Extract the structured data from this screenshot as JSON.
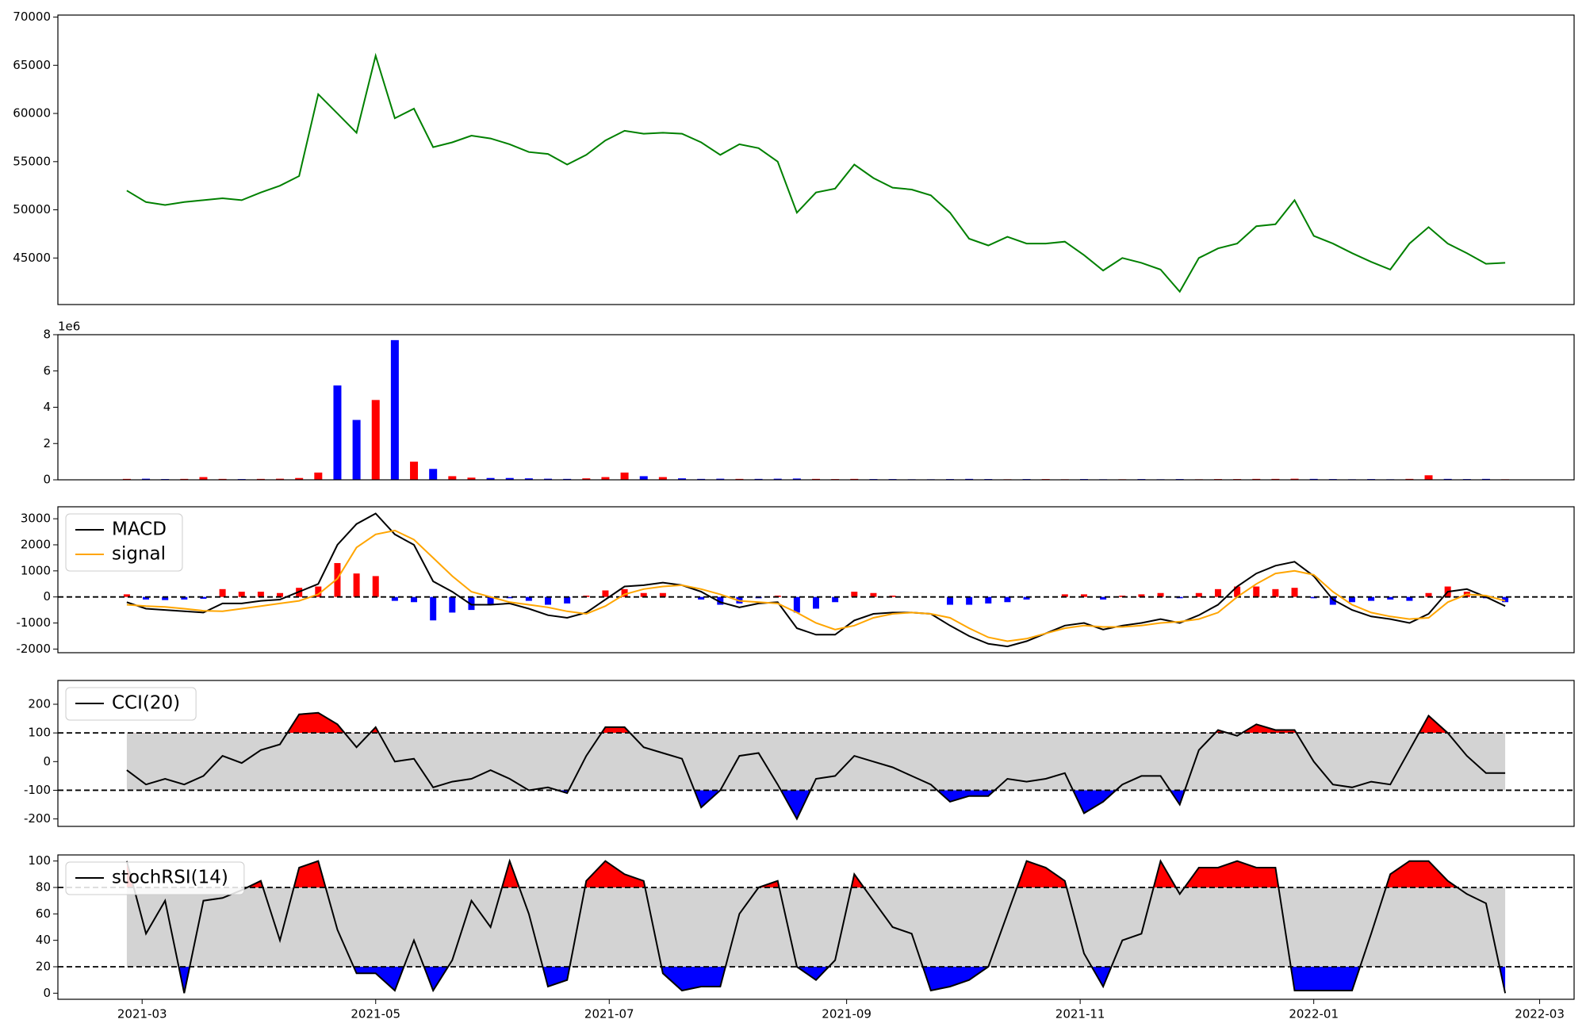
{
  "chart_data": {
    "type": "panels",
    "x": [
      -4,
      1,
      6,
      11,
      16,
      21,
      26,
      31,
      36,
      41,
      46,
      51,
      56,
      61,
      66,
      71,
      76,
      81,
      86,
      91,
      96,
      101,
      106,
      111,
      116,
      121,
      126,
      131,
      136,
      141,
      146,
      151,
      156,
      161,
      166,
      171,
      176,
      181,
      186,
      191,
      196,
      201,
      206,
      211,
      216,
      221,
      226,
      231,
      236,
      241,
      246,
      251,
      256,
      261,
      266,
      271,
      276,
      281,
      286,
      291,
      296,
      301,
      306,
      311,
      316,
      321,
      326,
      331,
      336,
      341,
      346,
      351,
      356
    ],
    "xlim": [
      -22,
      374
    ],
    "xticks": [
      {
        "value": 0,
        "label": "2021-03"
      },
      {
        "value": 61,
        "label": "2021-05"
      },
      {
        "value": 122,
        "label": "2021-07"
      },
      {
        "value": 184,
        "label": "2021-09"
      },
      {
        "value": 245,
        "label": "2021-11"
      },
      {
        "value": 306,
        "label": "2022-01"
      },
      {
        "value": 365,
        "label": "2022-03"
      }
    ],
    "panels": [
      {
        "type": "line",
        "series": [
          {
            "color": "green",
            "values": [
              52000,
              50800,
              50500,
              50800,
              51000,
              51200,
              51000,
              51800,
              52500,
              53500,
              62000,
              60000,
              58000,
              66000,
              59500,
              60500,
              56500,
              57000,
              57700,
              57400,
              56800,
              56000,
              55800,
              54700,
              55700,
              57200,
              58200,
              57900,
              58000,
              57900,
              57000,
              55700,
              56800,
              56400,
              55000,
              49700,
              51800,
              52200,
              54700,
              53300,
              52300,
              52100,
              51500,
              49700,
              47000,
              46300,
              47200,
              46500,
              46500,
              46700,
              45300,
              43700,
              45000,
              44500,
              43800,
              41500,
              45000,
              46000,
              46500,
              48300,
              48500,
              51000,
              47300,
              46500,
              45500,
              44600,
              43800,
              46500,
              48200,
              46500,
              45500,
              44400,
              44500
            ]
          }
        ],
        "ylim": [
          40170,
          70210
        ],
        "yticks": [
          45000,
          50000,
          55000,
          60000,
          65000,
          70000
        ]
      },
      {
        "type": "bar",
        "offset_label": "1e6",
        "up_color": "red",
        "down_color": "blue",
        "values": [
          0.05,
          0.06,
          0.04,
          0.05,
          0.15,
          0.05,
          0.04,
          0.05,
          0.06,
          0.1,
          0.4,
          5.2,
          3.3,
          4.4,
          7.7,
          1.0,
          0.6,
          0.2,
          0.12,
          0.1,
          0.1,
          0.08,
          0.06,
          0.05,
          0.08,
          0.15,
          0.4,
          0.2,
          0.15,
          0.08,
          0.05,
          0.06,
          0.05,
          0.05,
          0.06,
          0.07,
          0.05,
          0.04,
          0.05,
          0.04,
          0.04,
          0.03,
          0.03,
          0.04,
          0.05,
          0.04,
          0.03,
          0.04,
          0.04,
          0.03,
          0.04,
          0.03,
          0.03,
          0.04,
          0.03,
          0.04,
          0.03,
          0.04,
          0.04,
          0.05,
          0.05,
          0.06,
          0.05,
          0.04,
          0.03,
          0.04,
          0.03,
          0.05,
          0.25,
          0.05,
          0.04,
          0.05,
          0.03
        ],
        "ylim": [
          0,
          8
        ],
        "yticks": [
          0,
          2,
          4,
          6,
          8
        ]
      },
      {
        "type": "line",
        "legend": "upper left",
        "hlines": [
          0
        ],
        "series": [
          {
            "name": "MACD",
            "color": "black",
            "values": [
              -200,
              -450,
              -500,
              -550,
              -600,
              -250,
              -250,
              -150,
              -100,
              200,
              500,
              2000,
              2800,
              3200,
              2400,
              2000,
              600,
              200,
              -300,
              -300,
              -250,
              -450,
              -700,
              -800,
              -600,
              -100,
              400,
              450,
              550,
              450,
              200,
              -200,
              -400,
              -250,
              -200,
              -1200,
              -1450,
              -1450,
              -900,
              -650,
              -600,
              -600,
              -650,
              -1100,
              -1500,
              -1800,
              -1900,
              -1700,
              -1400,
              -1100,
              -1000,
              -1250,
              -1100,
              -1000,
              -850,
              -1000,
              -700,
              -300,
              400,
              900,
              1200,
              1350,
              800,
              -100,
              -500,
              -750,
              -850,
              -1000,
              -650,
              200,
              300,
              0,
              -350
            ]
          },
          {
            "name": "signal",
            "color": "orange",
            "values": [
              -300,
              -350,
              -380,
              -450,
              -530,
              -550,
              -450,
              -350,
              -250,
              -150,
              100,
              700,
              1900,
              2400,
              2550,
              2200,
              1500,
              800,
              200,
              0,
              -200,
              -300,
              -400,
              -550,
              -650,
              -350,
              100,
              300,
              400,
              450,
              300,
              100,
              -150,
              -200,
              -250,
              -600,
              -1000,
              -1250,
              -1100,
              -800,
              -650,
              -600,
              -650,
              -800,
              -1200,
              -1550,
              -1700,
              -1600,
              -1400,
              -1200,
              -1100,
              -1150,
              -1150,
              -1100,
              -1000,
              -950,
              -850,
              -600,
              0,
              500,
              900,
              1000,
              850,
              200,
              -300,
              -600,
              -750,
              -850,
              -800,
              -200,
              100,
              50,
              -150
            ]
          }
        ],
        "histogram": {
          "pos_color": "red",
          "neg_color": "blue",
          "values": [
            100,
            -100,
            -120,
            -100,
            -70,
            300,
            200,
            200,
            150,
            350,
            400,
            1300,
            900,
            800,
            -150,
            -200,
            -900,
            -600,
            -500,
            -300,
            -50,
            -150,
            -300,
            -250,
            50,
            250,
            300,
            150,
            150,
            0,
            -100,
            -300,
            -250,
            -50,
            50,
            -600,
            -450,
            -200,
            200,
            150,
            50,
            0,
            0,
            -300,
            -300,
            -250,
            -200,
            -100,
            0,
            100,
            100,
            -100,
            50,
            100,
            150,
            -50,
            150,
            300,
            400,
            400,
            300,
            350,
            -50,
            -300,
            -200,
            -150,
            -100,
            -150,
            150,
            400,
            200,
            -50,
            -200
          ]
        },
        "ylim": [
          -2140,
          3460
        ],
        "yticks": [
          -2000,
          -1000,
          0,
          1000,
          2000,
          3000
        ]
      },
      {
        "type": "band",
        "legend": "upper left",
        "band": [
          -100,
          100
        ],
        "band_color": "lightgray",
        "above_color": "red",
        "below_color": "blue",
        "series": [
          {
            "name": "CCI(20)",
            "color": "black",
            "values": [
              -30,
              -80,
              -60,
              -80,
              -50,
              20,
              -5,
              40,
              60,
              165,
              170,
              130,
              50,
              120,
              0,
              10,
              -90,
              -70,
              -60,
              -30,
              -60,
              -100,
              -90,
              -110,
              20,
              120,
              120,
              50,
              30,
              10,
              -160,
              -100,
              20,
              30,
              -80,
              -200,
              -60,
              -50,
              20,
              0,
              -20,
              -50,
              -80,
              -140,
              -120,
              -120,
              -60,
              -70,
              -60,
              -40,
              -180,
              -140,
              -80,
              -50,
              -50,
              -150,
              40,
              110,
              90,
              130,
              110,
              110,
              0,
              -80,
              -90,
              -70,
              -80,
              40,
              160,
              100,
              20,
              -40,
              -40
            ]
          }
        ],
        "ylim": [
          -226,
          283
        ],
        "yticks": [
          -200,
          -100,
          0,
          100,
          200
        ]
      },
      {
        "type": "band",
        "legend": "upper left",
        "band": [
          20,
          80
        ],
        "band_color": "lightgray",
        "above_color": "red",
        "below_color": "blue",
        "series": [
          {
            "name": "stochRSI(14)",
            "color": "black",
            "values": [
              100,
              45,
              70,
              0,
              70,
              72,
              78,
              85,
              40,
              95,
              100,
              48,
              15,
              15,
              2,
              40,
              2,
              25,
              70,
              50,
              100,
              60,
              5,
              10,
              85,
              100,
              90,
              85,
              15,
              2,
              5,
              5,
              60,
              80,
              85,
              20,
              10,
              25,
              90,
              70,
              50,
              45,
              2,
              5,
              10,
              20,
              60,
              100,
              95,
              85,
              30,
              5,
              40,
              45,
              100,
              75,
              95,
              95,
              100,
              95,
              95,
              2,
              2,
              2,
              2,
              45,
              90,
              100,
              100,
              85,
              75,
              68,
              0
            ]
          }
        ],
        "ylim": [
          -4.6,
          104.6
        ],
        "yticks": [
          0,
          20,
          40,
          60,
          80,
          100
        ]
      }
    ]
  }
}
